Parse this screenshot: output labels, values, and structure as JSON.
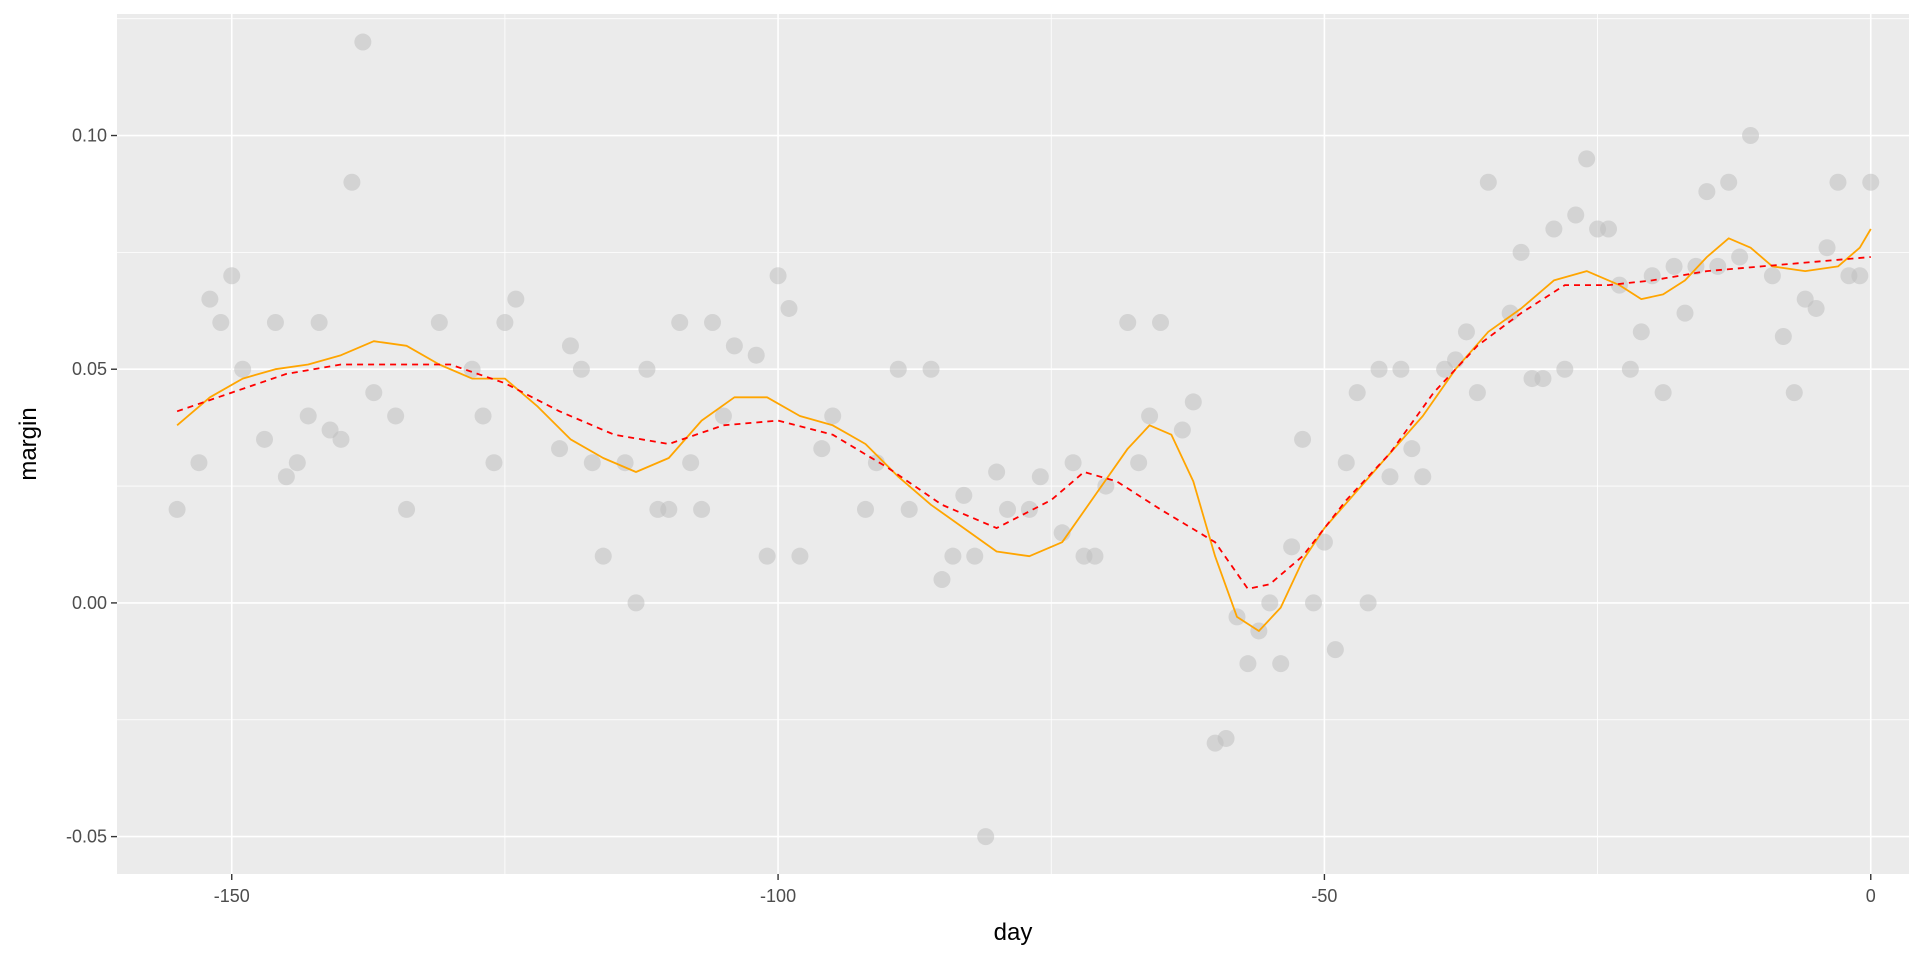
{
  "chart_data": {
    "type": "scatter",
    "xlabel": "day",
    "ylabel": "margin",
    "xlim": [
      -160.5,
      3.5
    ],
    "ylim": [
      -0.058,
      0.126
    ],
    "x_ticks": [
      -150,
      -100,
      -50,
      0
    ],
    "x_tick_labels": [
      "-150",
      "-100",
      "-50",
      "0"
    ],
    "y_ticks": [
      -0.05,
      0.0,
      0.05,
      0.1
    ],
    "y_tick_labels": [
      "-0.05",
      "0.00",
      "0.05",
      "0.10"
    ],
    "grid": true,
    "panel_background": "#ebebeb",
    "point_color": "#bfbfbf",
    "points": [
      [
        -155,
        0.02
      ],
      [
        -153,
        0.03
      ],
      [
        -152,
        0.065
      ],
      [
        -151,
        0.06
      ],
      [
        -150,
        0.07
      ],
      [
        -149,
        0.05
      ],
      [
        -147,
        0.035
      ],
      [
        -146,
        0.06
      ],
      [
        -145,
        0.027
      ],
      [
        -144,
        0.03
      ],
      [
        -143,
        0.04
      ],
      [
        -142,
        0.06
      ],
      [
        -141,
        0.037
      ],
      [
        -140,
        0.035
      ],
      [
        -139,
        0.09
      ],
      [
        -138,
        0.12
      ],
      [
        -137,
        0.045
      ],
      [
        -135,
        0.04
      ],
      [
        -134,
        0.02
      ],
      [
        -131,
        0.06
      ],
      [
        -128,
        0.05
      ],
      [
        -127,
        0.04
      ],
      [
        -126,
        0.03
      ],
      [
        -125,
        0.06
      ],
      [
        -124,
        0.065
      ],
      [
        -120,
        0.033
      ],
      [
        -119,
        0.055
      ],
      [
        -118,
        0.05
      ],
      [
        -117,
        0.03
      ],
      [
        -116,
        0.01
      ],
      [
        -114,
        0.03
      ],
      [
        -113,
        0.0
      ],
      [
        -112,
        0.05
      ],
      [
        -111,
        0.02
      ],
      [
        -110,
        0.02
      ],
      [
        -109,
        0.06
      ],
      [
        -108,
        0.03
      ],
      [
        -107,
        0.02
      ],
      [
        -106,
        0.06
      ],
      [
        -105,
        0.04
      ],
      [
        -104,
        0.055
      ],
      [
        -102,
        0.053
      ],
      [
        -101,
        0.01
      ],
      [
        -100,
        0.07
      ],
      [
        -99,
        0.063
      ],
      [
        -98,
        0.01
      ],
      [
        -96,
        0.033
      ],
      [
        -95,
        0.04
      ],
      [
        -92,
        0.02
      ],
      [
        -91,
        0.03
      ],
      [
        -89,
        0.05
      ],
      [
        -88,
        0.02
      ],
      [
        -86,
        0.05
      ],
      [
        -85,
        0.005
      ],
      [
        -84,
        0.01
      ],
      [
        -83,
        0.023
      ],
      [
        -82,
        0.01
      ],
      [
        -81,
        -0.05
      ],
      [
        -80,
        0.028
      ],
      [
        -79,
        0.02
      ],
      [
        -77,
        0.02
      ],
      [
        -76,
        0.027
      ],
      [
        -74,
        0.015
      ],
      [
        -73,
        0.03
      ],
      [
        -72,
        0.01
      ],
      [
        -71,
        0.01
      ],
      [
        -70,
        0.025
      ],
      [
        -68,
        0.06
      ],
      [
        -67,
        0.03
      ],
      [
        -66,
        0.04
      ],
      [
        -65,
        0.06
      ],
      [
        -63,
        0.037
      ],
      [
        -62,
        0.043
      ],
      [
        -60,
        -0.03
      ],
      [
        -59,
        -0.029
      ],
      [
        -58,
        -0.003
      ],
      [
        -57,
        -0.013
      ],
      [
        -56,
        -0.006
      ],
      [
        -55,
        0.0
      ],
      [
        -54,
        -0.013
      ],
      [
        -53,
        0.012
      ],
      [
        -52,
        0.035
      ],
      [
        -51,
        0.0
      ],
      [
        -50,
        0.013
      ],
      [
        -49,
        -0.01
      ],
      [
        -48,
        0.03
      ],
      [
        -47,
        0.045
      ],
      [
        -46,
        0.0
      ],
      [
        -45,
        0.05
      ],
      [
        -44,
        0.027
      ],
      [
        -43,
        0.05
      ],
      [
        -42,
        0.033
      ],
      [
        -41,
        0.027
      ],
      [
        -39,
        0.05
      ],
      [
        -38,
        0.052
      ],
      [
        -37,
        0.058
      ],
      [
        -36,
        0.045
      ],
      [
        -35,
        0.09
      ],
      [
        -33,
        0.062
      ],
      [
        -32,
        0.075
      ],
      [
        -31,
        0.048
      ],
      [
        -30,
        0.048
      ],
      [
        -29,
        0.08
      ],
      [
        -28,
        0.05
      ],
      [
        -27,
        0.083
      ],
      [
        -26,
        0.095
      ],
      [
        -25,
        0.08
      ],
      [
        -24,
        0.08
      ],
      [
        -23,
        0.068
      ],
      [
        -22,
        0.05
      ],
      [
        -21,
        0.058
      ],
      [
        -20,
        0.07
      ],
      [
        -19,
        0.045
      ],
      [
        -18,
        0.072
      ],
      [
        -17,
        0.062
      ],
      [
        -16,
        0.072
      ],
      [
        -15,
        0.088
      ],
      [
        -14,
        0.072
      ],
      [
        -13,
        0.09
      ],
      [
        -12,
        0.074
      ],
      [
        -11,
        0.1
      ],
      [
        -9,
        0.07
      ],
      [
        -8,
        0.057
      ],
      [
        -7,
        0.045
      ],
      [
        -6,
        0.065
      ],
      [
        -5,
        0.063
      ],
      [
        -4,
        0.076
      ],
      [
        -3,
        0.09
      ],
      [
        -2,
        0.07
      ],
      [
        -1,
        0.07
      ],
      [
        0,
        0.09
      ]
    ],
    "series": [
      {
        "style": "solid",
        "color": "#ffa500",
        "points": [
          [
            -155,
            0.038
          ],
          [
            -152,
            0.044
          ],
          [
            -149,
            0.048
          ],
          [
            -146,
            0.05
          ],
          [
            -143,
            0.051
          ],
          [
            -140,
            0.053
          ],
          [
            -137,
            0.056
          ],
          [
            -134,
            0.055
          ],
          [
            -131,
            0.051
          ],
          [
            -128,
            0.048
          ],
          [
            -125,
            0.048
          ],
          [
            -122,
            0.042
          ],
          [
            -119,
            0.035
          ],
          [
            -116,
            0.031
          ],
          [
            -113,
            0.028
          ],
          [
            -110,
            0.031
          ],
          [
            -107,
            0.039
          ],
          [
            -104,
            0.044
          ],
          [
            -101,
            0.044
          ],
          [
            -98,
            0.04
          ],
          [
            -95,
            0.038
          ],
          [
            -92,
            0.034
          ],
          [
            -89,
            0.027
          ],
          [
            -86,
            0.021
          ],
          [
            -83,
            0.016
          ],
          [
            -80,
            0.011
          ],
          [
            -77,
            0.01
          ],
          [
            -74,
            0.013
          ],
          [
            -71,
            0.023
          ],
          [
            -68,
            0.033
          ],
          [
            -66,
            0.038
          ],
          [
            -64,
            0.036
          ],
          [
            -62,
            0.026
          ],
          [
            -60,
            0.01
          ],
          [
            -58,
            -0.003
          ],
          [
            -56,
            -0.006
          ],
          [
            -54,
            -0.001
          ],
          [
            -52,
            0.009
          ],
          [
            -50,
            0.016
          ],
          [
            -47,
            0.024
          ],
          [
            -44,
            0.032
          ],
          [
            -41,
            0.04
          ],
          [
            -38,
            0.05
          ],
          [
            -35,
            0.058
          ],
          [
            -32,
            0.063
          ],
          [
            -29,
            0.069
          ],
          [
            -26,
            0.071
          ],
          [
            -23,
            0.068
          ],
          [
            -21,
            0.065
          ],
          [
            -19,
            0.066
          ],
          [
            -17,
            0.069
          ],
          [
            -15,
            0.074
          ],
          [
            -13,
            0.078
          ],
          [
            -11,
            0.076
          ],
          [
            -9,
            0.072
          ],
          [
            -6,
            0.071
          ],
          [
            -3,
            0.072
          ],
          [
            -1,
            0.076
          ],
          [
            0,
            0.08
          ]
        ]
      },
      {
        "style": "dashed",
        "color": "#ff0000",
        "points": [
          [
            -155,
            0.041
          ],
          [
            -150,
            0.045
          ],
          [
            -145,
            0.049
          ],
          [
            -140,
            0.051
          ],
          [
            -135,
            0.051
          ],
          [
            -130,
            0.051
          ],
          [
            -125,
            0.047
          ],
          [
            -120,
            0.041
          ],
          [
            -115,
            0.036
          ],
          [
            -110,
            0.034
          ],
          [
            -105,
            0.038
          ],
          [
            -100,
            0.039
          ],
          [
            -95,
            0.036
          ],
          [
            -90,
            0.029
          ],
          [
            -85,
            0.021
          ],
          [
            -80,
            0.016
          ],
          [
            -75,
            0.022
          ],
          [
            -72,
            0.028
          ],
          [
            -69,
            0.026
          ],
          [
            -65,
            0.02
          ],
          [
            -60,
            0.013
          ],
          [
            -57,
            0.003
          ],
          [
            -55,
            0.004
          ],
          [
            -52,
            0.01
          ],
          [
            -48,
            0.022
          ],
          [
            -44,
            0.032
          ],
          [
            -40,
            0.045
          ],
          [
            -36,
            0.055
          ],
          [
            -32,
            0.062
          ],
          [
            -28,
            0.068
          ],
          [
            -24,
            0.068
          ],
          [
            -20,
            0.069
          ],
          [
            -15,
            0.071
          ],
          [
            -10,
            0.072
          ],
          [
            -5,
            0.073
          ],
          [
            0,
            0.074
          ]
        ]
      }
    ]
  }
}
